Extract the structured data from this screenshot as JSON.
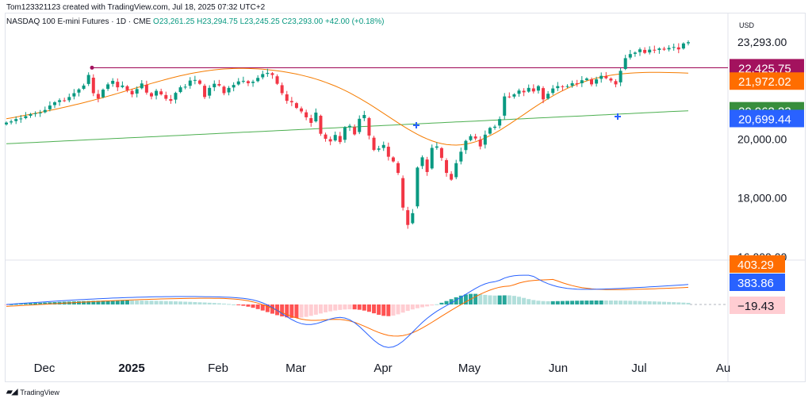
{
  "header": {
    "created_by": "Tom123321123 created with TradingView.com, Jul 18, 2025 07:32 UTC+2",
    "symbol": "NASDAQ 100 E-mini Futures · 1D · CME",
    "open": "O23,261.25",
    "high": "H23,294.75",
    "low": "L23,245.25",
    "close": "C23,293.00",
    "change": "+42.00 (+0.18%)"
  },
  "currency": "USD",
  "footer": {
    "brand": "TradingView",
    "logo_icon": "tradingview-logo-icon"
  },
  "colors": {
    "up": "#089981",
    "down": "#f23645",
    "ma_fast": "#f57c00",
    "ma_slow": "#4caf50",
    "level": "#a3125e",
    "macd_line": "#2962ff",
    "signal_line": "#ff6d00",
    "hist_up_strong": "#26a69a",
    "hist_up_weak": "#b2dfdb",
    "hist_down_strong": "#ff5252",
    "hist_down_weak": "#ffcdd2"
  },
  "chart_data": {
    "type": "candlestick",
    "y_ticks": [
      "23,293.00",
      "20,000.00",
      "18,000.00",
      "16,000.00"
    ],
    "y_tick_values": [
      23293,
      20000,
      18000,
      16000
    ],
    "x_ticks": [
      "Dec",
      "2025",
      "Feb",
      "Mar",
      "Apr",
      "May",
      "Jun",
      "Jul",
      "Au"
    ],
    "ylim": [
      15940,
      23650
    ],
    "price_labels": [
      {
        "text": "22,425.75",
        "value": 22425.75,
        "color": "#a3125e"
      },
      {
        "text": "21,972.02",
        "value": 21972.02,
        "color": "#ff6d00"
      },
      {
        "text": "20,963.33",
        "value": 20963.33,
        "color": "#388e3c"
      },
      {
        "text": "20,699.44",
        "value": 20699.44,
        "color": "#2962ff"
      }
    ],
    "horizontal_level": 22425.75,
    "closes": [
      20560,
      20600,
      20680,
      20700,
      20780,
      20850,
      20880,
      20900,
      20990,
      21140,
      21250,
      21320,
      21300,
      21430,
      21560,
      21690,
      21820,
      22180,
      21560,
      21380,
      21680,
      21860,
      21980,
      21760,
      21820,
      21660,
      21520,
      21700,
      21890,
      21580,
      21450,
      21640,
      21520,
      21370,
      21300,
      21570,
      21760,
      21780,
      21990,
      22010,
      21880,
      21430,
      21740,
      21880,
      21820,
      21560,
      21740,
      21840,
      21960,
      21980,
      21900,
      21950,
      22080,
      22210,
      22250,
      22180,
      21880,
      21560,
      21300,
      21250,
      21060,
      20940,
      20740,
      20550,
      20900,
      20180,
      20010,
      19920,
      20140,
      19900,
      20400,
      20450,
      20160,
      20690,
      20820,
      20120,
      19630,
      19680,
      19800,
      19400,
      19240,
      18850,
      17670,
      17080,
      17480,
      19030,
      19380,
      18880,
      19700,
      19750,
      19360,
      18850,
      18620,
      19180,
      19570,
      19940,
      20100,
      20020,
      19750,
      20150,
      20380,
      20420,
      20680,
      21450,
      21430,
      21520,
      21650,
      21590,
      21740,
      21620,
      21800,
      21350,
      21540,
      21720,
      21800,
      21770,
      21800,
      21900,
      21880,
      22000,
      22060,
      21860,
      22030,
      22150,
      22070,
      21990,
      21860,
      22320,
      22750,
      22890,
      22940,
      23050,
      22930,
      23040,
      23020,
      23080,
      23040,
      23100,
      23130,
      23050,
      23250,
      23293
    ],
    "ma_fast": {
      "start": 20680,
      "end": 21972.02
    },
    "ma_slow": {
      "start": 19840,
      "end": 20963.33
    },
    "indicator": {
      "type": "MACD",
      "labels": [
        {
          "text": "403.29",
          "value": 403.29,
          "color": "#ff6d00"
        },
        {
          "text": "383.86",
          "value": 383.86,
          "color": "#2962ff"
        },
        {
          "text": "−19.43",
          "value": -19.43,
          "color": "#ffcdd2"
        }
      ]
    }
  }
}
